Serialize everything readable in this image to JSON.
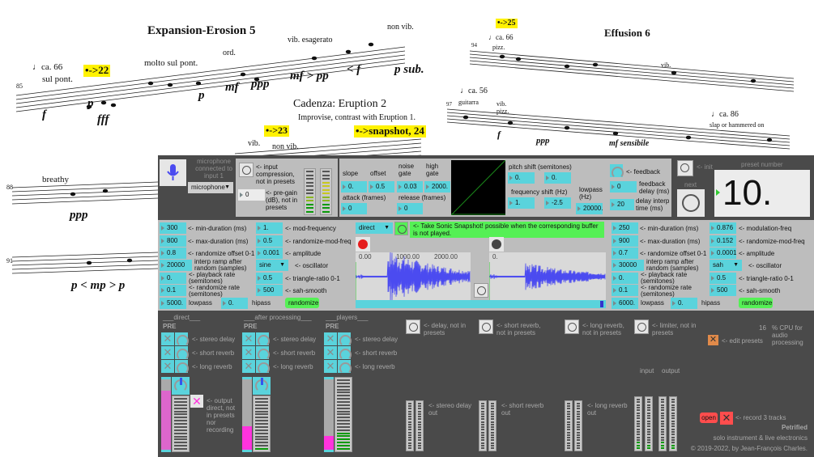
{
  "score": {
    "title_1": "Expansion-Erosion 5",
    "title_2": "Cadenza: Eruption 2",
    "subtitle_2": "Improvise, contrast with Eruption 1.",
    "title_3": "Effusion 6",
    "cues": [
      "•->22",
      "•->23",
      "•->snapshot, 24",
      "•->25"
    ],
    "tempi": [
      "♩ca. 66",
      "♩ca. 66",
      "♩ca. 56",
      "♩ca. 86"
    ],
    "measures": [
      "85",
      "88",
      "91",
      "94",
      "97"
    ],
    "marks": [
      "sul pont.",
      "molto sul pont.",
      "ord.",
      "vib. esagerato",
      "non vib.",
      "vib.",
      "non vib.",
      "breathy",
      "pizz.",
      "vib.",
      "guitarra",
      "vib. pizz.",
      "slap or hammered on"
    ],
    "dynamics": [
      "f",
      "p",
      "fff",
      "p",
      "mf",
      "ppp",
      "mf > pp",
      "< f",
      "p sub.",
      "ppp",
      "p < mp > p",
      "f",
      "ppp",
      "mf sensibile"
    ]
  },
  "input": {
    "mic_label": "microphone connected to input 1",
    "source": "microphone",
    "compression_label": "<- input compression, not in presets",
    "pregain": "0",
    "pregain_label": "<- pre-gain (dB), not in presets"
  },
  "gate": {
    "slope_label": "slope",
    "slope": "0.",
    "offset_label": "offset",
    "offset": "0.5",
    "noise_label": "noise gate",
    "noise": "0.03",
    "high_label": "high gate",
    "high": "2000.",
    "attack_label": "attack (frames)",
    "attack": "0",
    "release_label": "release (frames)",
    "release": "0"
  },
  "pitch": {
    "shift_label": "pitch shift (semitones)",
    "shift_a": "0.",
    "shift_b": "0.",
    "freq_label": "frequency shift (Hz)",
    "freq_a": "1.",
    "freq_b": "-2.5",
    "lowpass_label": "lowpass (Hz)",
    "lowpass": "20000."
  },
  "feedback": {
    "label": "<- feedback",
    "delay": "0",
    "delay_label": "feedback delay (ms)",
    "interp": "20",
    "interp_label": "delay interp time (ms)"
  },
  "presets": {
    "init_label": "<- init",
    "next_label": "next",
    "number_label": "preset number",
    "number": "10."
  },
  "gran_left": {
    "rows": [
      {
        "v": "300",
        "l": "<- min-duration (ms)"
      },
      {
        "v": "800",
        "l": "<- max-duration (ms)"
      },
      {
        "v": "0.8",
        "l": "<- randomize offset 0-1"
      },
      {
        "v": "20000",
        "l": "interp ramp after random (samples)"
      },
      {
        "v": "0.",
        "l": "<- playback rate (semitones)"
      },
      {
        "v": "0.1",
        "l": "<- randomize rate (semitones)"
      }
    ],
    "mod": [
      {
        "v": "1.",
        "l": "<- mod-frequency"
      },
      {
        "v": "0.5",
        "l": "<- randomize-mod-freq"
      },
      {
        "v": "0.001",
        "l": "<- amplitude"
      },
      {
        "v": "sine",
        "l": "<- oscillator"
      },
      {
        "v": "0.5",
        "l": "<- triangle-ratio 0-1"
      },
      {
        "v": "500",
        "l": "<- sah-smooth"
      }
    ],
    "lowpass": "5000.",
    "lowpass_label": "lowpass",
    "hipass": "0.",
    "hipass_label": "hipass",
    "randomize": "randomize"
  },
  "gran_right": {
    "rows": [
      {
        "v": "250",
        "l": "<- min-duration (ms)"
      },
      {
        "v": "900",
        "l": "<- max-duration (ms)"
      },
      {
        "v": "0.7",
        "l": "<- randomize offset 0-1"
      },
      {
        "v": "30000",
        "l": "interp ramp after random (samples)"
      },
      {
        "v": "0.",
        "l": "<- playback rate (semitones)"
      },
      {
        "v": "0.1",
        "l": "<- randomize rate (semitones)"
      }
    ],
    "mod": [
      {
        "v": "0.876",
        "l": "<- modulation-freq"
      },
      {
        "v": "0.152",
        "l": "<- randomize-mod-freq"
      },
      {
        "v": "0.0001",
        "l": "<- amplitude"
      },
      {
        "v": "sah",
        "l": "<- oscillator"
      },
      {
        "v": "0.5",
        "l": "<- triangle-ratio 0-1"
      },
      {
        "v": "500",
        "l": "<- sah-smooth"
      }
    ],
    "lowpass": "6000.",
    "lowpass_label": "lowpass",
    "hipass": "0.",
    "hipass_label": "hipass",
    "randomize": "randomize"
  },
  "snapshot": {
    "source": "direct",
    "label": "<- Take Sonic Snapshot! possible when the corresponding buffer is not played.",
    "ticks": [
      "0.00",
      "1000.00",
      "2000.00"
    ],
    "ticks2": [
      "0."
    ]
  },
  "mixer": {
    "channels": [
      {
        "title": "___direct___",
        "pre": "PRE"
      },
      {
        "title": "___after processing___",
        "pre": "PRE"
      },
      {
        "title": "___players___",
        "pre": "PRE"
      }
    ],
    "sends": [
      "<- stereo delay",
      "<- short reverb",
      "<- long reverb"
    ],
    "output_direct_label": "<- output direct, not in presets nor recording"
  },
  "effects": {
    "toggles": [
      "<- delay, not in presets",
      "<- short reverb, not in presets",
      "<- long reverb, not in presets",
      "<- limiter, not in presets"
    ],
    "outs": [
      "<- stereo delay out",
      "<- short reverb out",
      "<- long reverb out"
    ],
    "input_label": "input",
    "output_label": "output"
  },
  "cpu": {
    "value": "16",
    "label": "% CPU for audio processing"
  },
  "edit_presets_label": "<- edit presets",
  "record": {
    "open": "open",
    "label": "<- record 3 tracks"
  },
  "credits": {
    "title": "Petrified",
    "subtitle": "solo instrument & live electronics",
    "copyright": "© 2019-2022, by Jean-François Charles."
  },
  "colors": {
    "numbox": "#5ad3dc",
    "panel": "#4a4a4a",
    "accent_green": "#55f055",
    "fader_fill": "#ff33dd",
    "cue_highlight": "#fff200"
  }
}
